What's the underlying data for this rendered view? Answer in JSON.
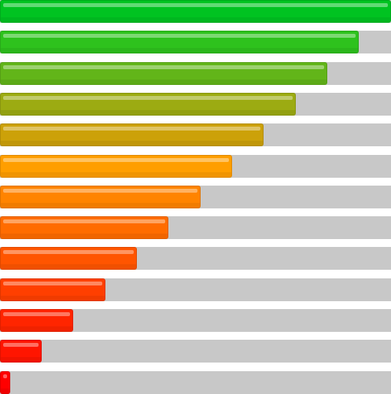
{
  "progress_bars": [
    {
      "level": 1.0,
      "color": "#00c321"
    },
    {
      "level": 0.918,
      "color": "#2ec21d"
    },
    {
      "level": 0.837,
      "color": "#62b519"
    },
    {
      "level": 0.756,
      "color": "#9cab12"
    },
    {
      "level": 0.675,
      "color": "#cca109"
    },
    {
      "level": 0.594,
      "color": "#ff9e00"
    },
    {
      "level": 0.513,
      "color": "#ff8400"
    },
    {
      "level": 0.431,
      "color": "#ff6c00"
    },
    {
      "level": 0.35,
      "color": "#ff5500"
    },
    {
      "level": 0.269,
      "color": "#ff3f00"
    },
    {
      "level": 0.187,
      "color": "#ff2500"
    },
    {
      "level": 0.106,
      "color": "#ff1500"
    },
    {
      "level": 0.026,
      "color": "#ff0000"
    }
  ]
}
